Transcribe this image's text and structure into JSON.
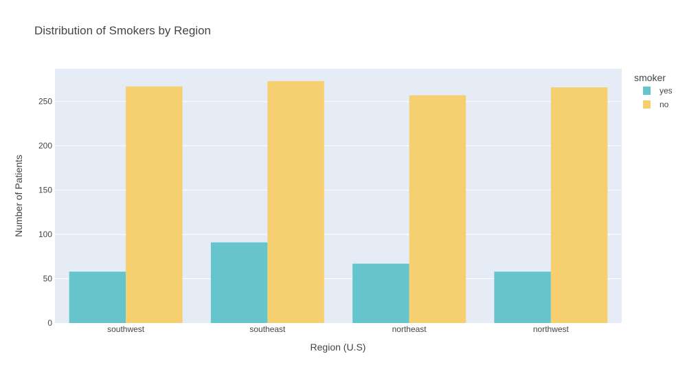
{
  "chart_data": {
    "type": "bar",
    "barmode": "group",
    "title": "Distribution of Smokers by Region",
    "xlabel": "Region (U.S)",
    "ylabel": "Number of Patients",
    "categories": [
      "southwest",
      "southeast",
      "northeast",
      "northwest"
    ],
    "series": [
      {
        "name": "yes",
        "values": [
          58,
          91,
          67,
          58
        ],
        "color": "#66c5cc"
      },
      {
        "name": "no",
        "values": [
          267,
          273,
          257,
          266
        ],
        "color": "#f6cf71"
      }
    ],
    "ylim": [
      0,
      287
    ],
    "yticks": [
      0,
      50,
      100,
      150,
      200,
      250
    ],
    "grid": true,
    "plot_background": "#e5ecf6",
    "legend": {
      "title": "smoker",
      "placement": "top-right outside"
    }
  }
}
